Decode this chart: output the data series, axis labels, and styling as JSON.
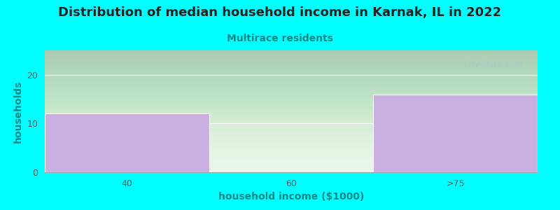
{
  "title": "Distribution of median household income in Karnak, IL in 2022",
  "subtitle": "Multirace residents",
  "categories": [
    "40",
    "60",
    ">75"
  ],
  "values": [
    12,
    0,
    16
  ],
  "bar_color": "#c9b0e0",
  "bar_edge_color": "#c9b0e0",
  "background_color": "#00ffff",
  "xlabel": "household income ($1000)",
  "ylabel": "households",
  "ylim": [
    0,
    25
  ],
  "yticks": [
    0,
    10,
    20
  ],
  "title_fontsize": 13,
  "title_color": "#222222",
  "subtitle_fontsize": 10,
  "subtitle_color": "#008888",
  "ylabel_color": "#008888",
  "xlabel_color": "#008888",
  "tick_color": "#555555",
  "watermark": "City-Data.com",
  "watermark_color": "#aac8d0",
  "plot_bg_top": "#e8f5e8",
  "plot_bg_bottom": "#f8fff8"
}
